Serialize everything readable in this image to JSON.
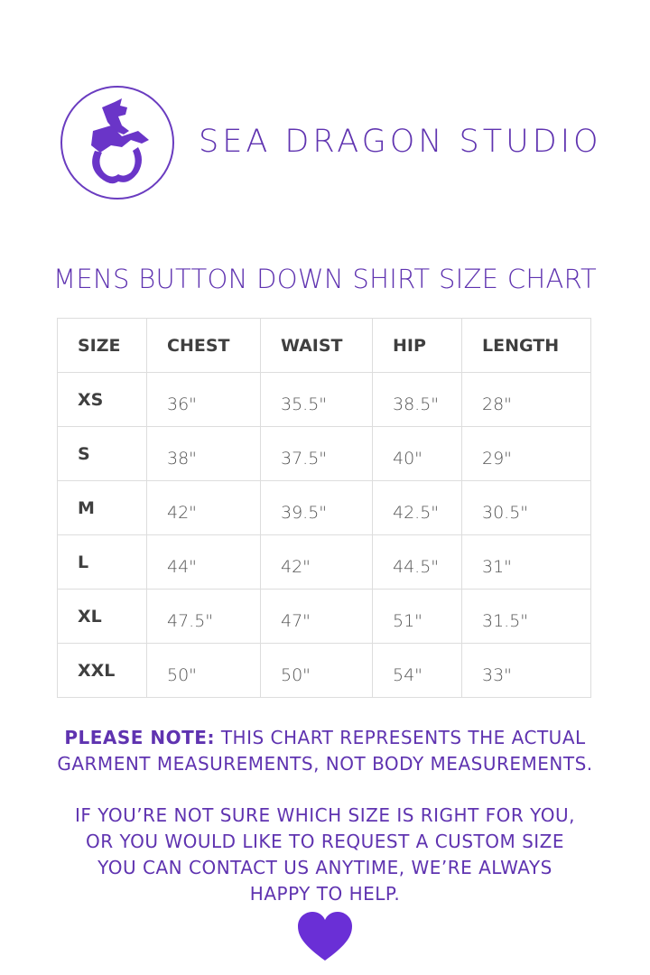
{
  "brand": {
    "name": "SEA DRAGON STUDIO",
    "logo_icon": "sea-dragon-logo",
    "color": "#5f33b0"
  },
  "title": "MENS BUTTON DOWN SHIRT SIZE CHART",
  "table": {
    "headers": [
      "SIZE",
      "CHEST",
      "WAIST",
      "HIP",
      "LENGTH"
    ],
    "rows": [
      [
        "XS",
        "36\"",
        "35.5\"",
        "38.5\"",
        "28\""
      ],
      [
        "S",
        "38\"",
        "37.5\"",
        "40\"",
        "29\""
      ],
      [
        "M",
        "42\"",
        "39.5\"",
        "42.5\"",
        "30.5\""
      ],
      [
        "L",
        "44\"",
        "42\"",
        "44.5\"",
        "31\""
      ],
      [
        "XL",
        "47.5\"",
        "47\"",
        "51\"",
        "31.5\""
      ],
      [
        "XXL",
        "50\"",
        "50\"",
        "54\"",
        "33\""
      ]
    ]
  },
  "note": {
    "label": "PLEASE NOTE:",
    "line1": " THIS CHART REPRESENTS THE ACTUAL",
    "line2": "GARMENT MEASUREMENTS, NOT BODY MEASUREMENTS."
  },
  "help": {
    "line1": "IF YOU’RE NOT SURE WHICH SIZE IS RIGHT FOR YOU,",
    "line2": "OR YOU WOULD LIKE TO REQUEST A CUSTOM SIZE",
    "line3": "YOU CAN CONTACT US ANYTIME, WE’RE ALWAYS",
    "line4": "HAPPY TO HELP."
  },
  "heart": {
    "icon": "heart-icon",
    "color": "#6a2fd6"
  }
}
